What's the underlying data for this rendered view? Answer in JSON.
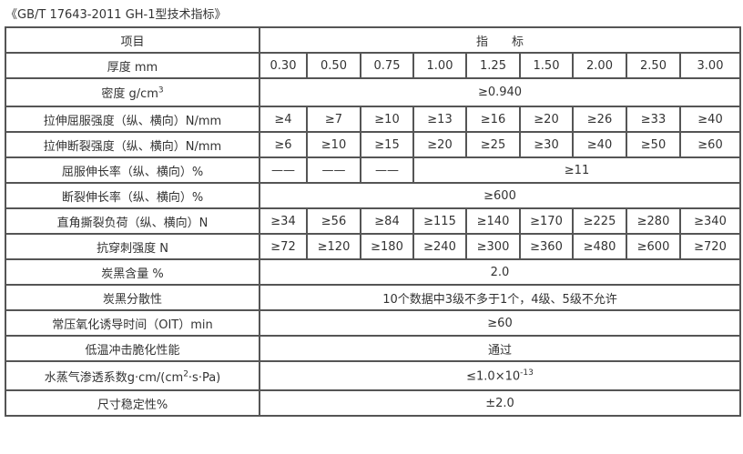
{
  "title": "《GB/T 17643-2011 GH-1型技术指标》",
  "header": {
    "item": "项目",
    "index": "指　　标"
  },
  "thickness": {
    "label": "厚度 mm",
    "values": [
      "0.30",
      "0.50",
      "0.75",
      "1.00",
      "1.25",
      "1.50",
      "2.00",
      "2.50",
      "3.00"
    ]
  },
  "density": {
    "label": "密度 g/cm",
    "sup": "3",
    "value": "≥0.940"
  },
  "yield_strength": {
    "label": "拉伸屈服强度（纵、横向）N/mm",
    "values": [
      "≥4",
      "≥7",
      "≥10",
      "≥13",
      "≥16",
      "≥20",
      "≥26",
      "≥33",
      "≥40"
    ]
  },
  "break_strength": {
    "label": "拉伸断裂强度（纵、横向）N/mm",
    "values": [
      "≥6",
      "≥10",
      "≥15",
      "≥20",
      "≥25",
      "≥30",
      "≥40",
      "≥50",
      "≥60"
    ]
  },
  "yield_elong": {
    "label": "屈服伸长率（纵、横向）%",
    "values": [
      "——",
      "——",
      "——"
    ],
    "rest": "≥11"
  },
  "break_elong": {
    "label": "断裂伸长率（纵、横向）%",
    "value": "≥600"
  },
  "tear": {
    "label": "直角撕裂负荷（纵、横向）N",
    "values": [
      "≥34",
      "≥56",
      "≥84",
      "≥115",
      "≥140",
      "≥170",
      "≥225",
      "≥280",
      "≥340"
    ]
  },
  "puncture": {
    "label": "抗穿刺强度 N",
    "values": [
      "≥72",
      "≥120",
      "≥180",
      "≥240",
      "≥300",
      "≥360",
      "≥480",
      "≥600",
      "≥720"
    ]
  },
  "carbon": {
    "label": "炭黑含量 %",
    "value": "2.0"
  },
  "dispersion": {
    "label": "炭黑分散性",
    "value": "10个数据中3级不多于1个，4级、5级不允许"
  },
  "oit": {
    "label": "常压氧化诱导时间（OIT）min",
    "value": "≥60"
  },
  "low_temp": {
    "label": "低温冲击脆化性能",
    "value": "通过"
  },
  "vapor": {
    "label_pre": "水蒸气渗透系数g·cm/(cm",
    "label_sup": "2",
    "label_post": "·s·Pa)",
    "value_pre": "≤1.0×10",
    "value_sup": "-13"
  },
  "dimension": {
    "label": "尺寸稳定性%",
    "value": "±2.0"
  }
}
